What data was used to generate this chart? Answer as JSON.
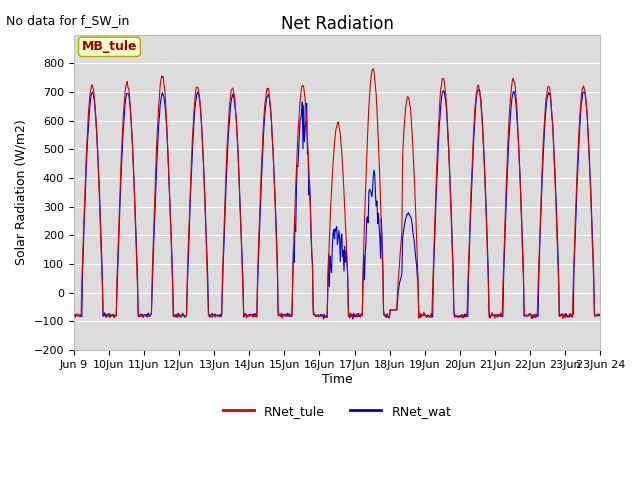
{
  "title": "Net Radiation",
  "subtitle": "No data for f_SW_in",
  "ylabel": "Solar Radiation (W/m2)",
  "xlabel": "Time",
  "ylim": [
    -200,
    900
  ],
  "yticks": [
    -200,
    -100,
    0,
    100,
    200,
    300,
    400,
    500,
    600,
    700,
    800
  ],
  "background_color": "#dcdcdc",
  "line_color_tule": "#dd0000",
  "line_color_wat": "#0000dd",
  "legend_label_tule": "RNet_tule",
  "legend_label_wat": "RNet_wat",
  "annotation_text": "MB_tule",
  "annotation_bg": "#ffffcc",
  "annotation_border": "#aaaa00",
  "start_day": 9,
  "end_day": 24,
  "num_days": 15,
  "figsize": [
    6.4,
    4.8
  ],
  "dpi": 100
}
